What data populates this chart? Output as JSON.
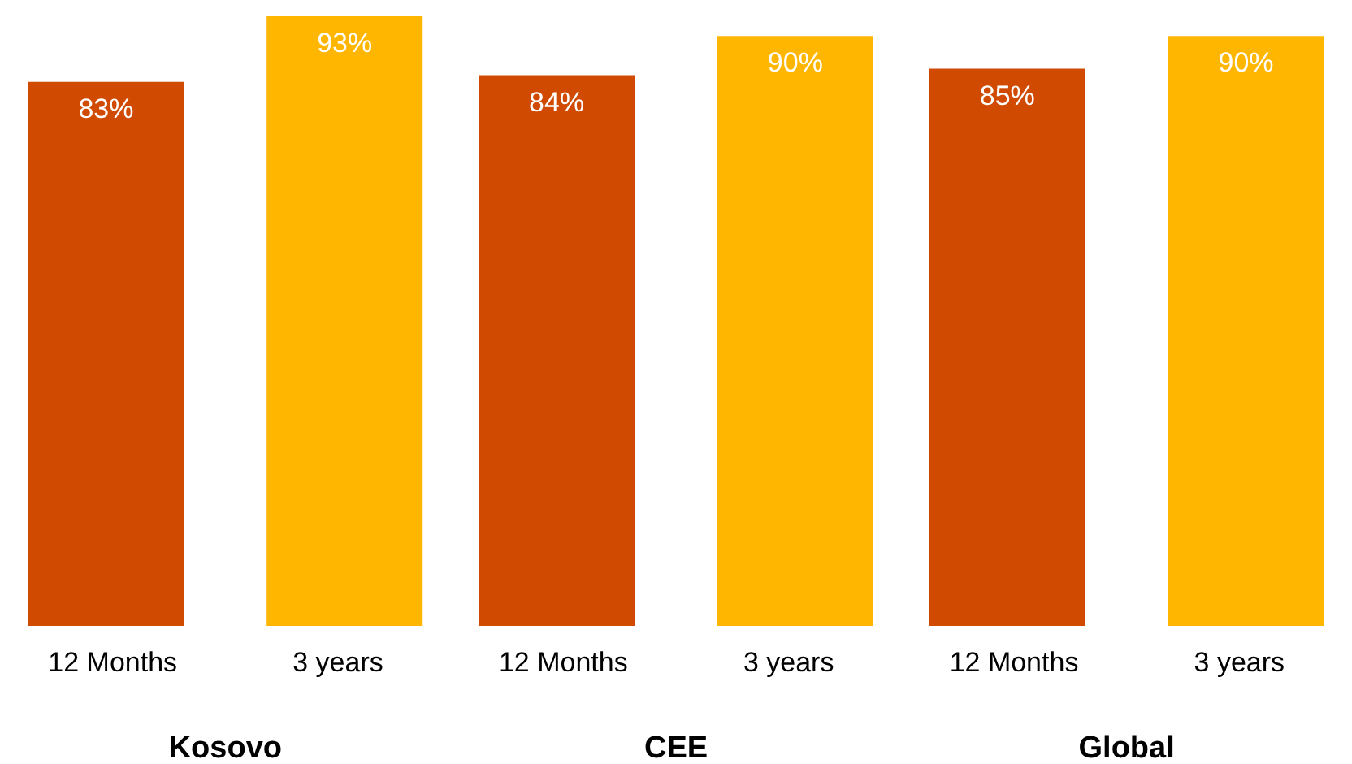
{
  "chart_data": {
    "type": "bar",
    "categories": [
      "Kosovo",
      "CEE",
      "Global"
    ],
    "series": [
      {
        "name": "12 Months",
        "color": "#d04a02",
        "values": [
          83,
          84,
          85
        ],
        "value_labels": [
          "83%",
          "84%",
          "85%"
        ]
      },
      {
        "name": "3 years",
        "color": "#ffb600",
        "values": [
          93,
          90,
          90
        ],
        "value_labels": [
          "93%",
          "90%",
          "90%"
        ]
      }
    ],
    "legend": false
  }
}
